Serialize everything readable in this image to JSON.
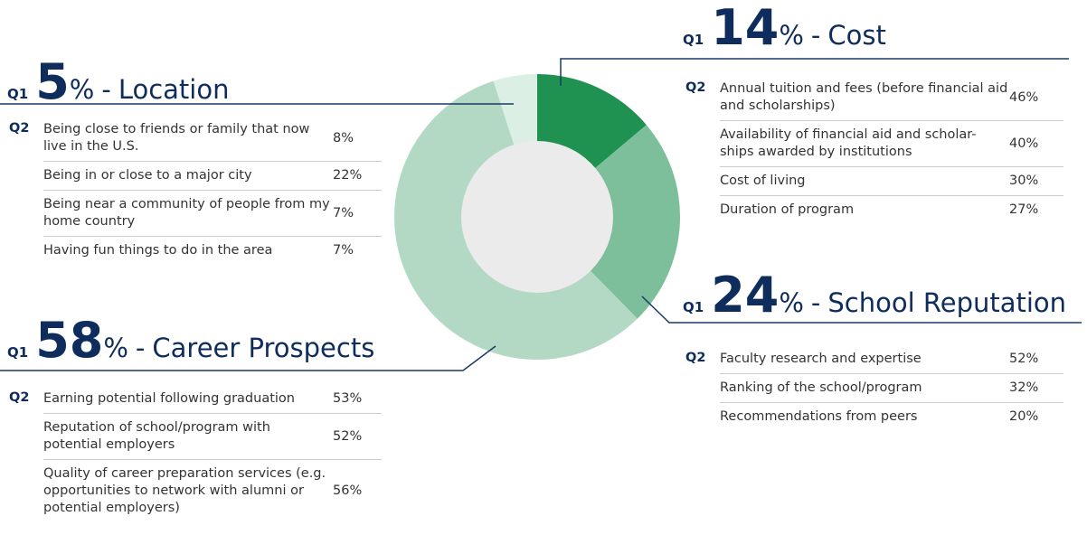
{
  "chart_data": {
    "type": "donut",
    "categories": [
      "Cost",
      "School Reputation",
      "Career Prospects",
      "Location"
    ],
    "values": [
      14,
      24,
      58,
      5
    ],
    "colors": [
      "#1f9150",
      "#7dbf9a",
      "#b3d9c4",
      "#dcefe5"
    ],
    "unit": "%",
    "separator": "-"
  },
  "q1": "Q1",
  "q2": "Q2",
  "panels": [
    {
      "rows": [
        {
          "label": "Annual tuition and fees (before financial aid and scholarships)",
          "value": "46%"
        },
        {
          "label": "Availability of financial aid and scholar-ships awarded by institutions",
          "value": "40%"
        },
        {
          "label": "Cost of living",
          "value": "30%"
        },
        {
          "label": "Duration of program",
          "value": "27%"
        }
      ]
    },
    {
      "rows": [
        {
          "label": "Faculty research and expertise",
          "value": "52%"
        },
        {
          "label": "Ranking of the school/program",
          "value": "32%"
        },
        {
          "label": "Recommendations from peers",
          "value": "20%"
        }
      ]
    },
    {
      "rows": [
        {
          "label": "Earning potential following graduation",
          "value": "53%"
        },
        {
          "label": "Reputation of school/program with potential employers",
          "value": "52%"
        },
        {
          "label": "Quality of career preparation services (e.g. opportunities to network with alumni or potential employers)",
          "value": "56%"
        }
      ]
    },
    {
      "rows": [
        {
          "label": "Being close to friends or family that now live in the U.S.",
          "value": "8%"
        },
        {
          "label": "Being in or close to a major city",
          "value": "22%"
        },
        {
          "label": "Being near a community of people from my home country",
          "value": "7%"
        },
        {
          "label": "Having fun things to do in the area",
          "value": "7%"
        }
      ]
    }
  ]
}
